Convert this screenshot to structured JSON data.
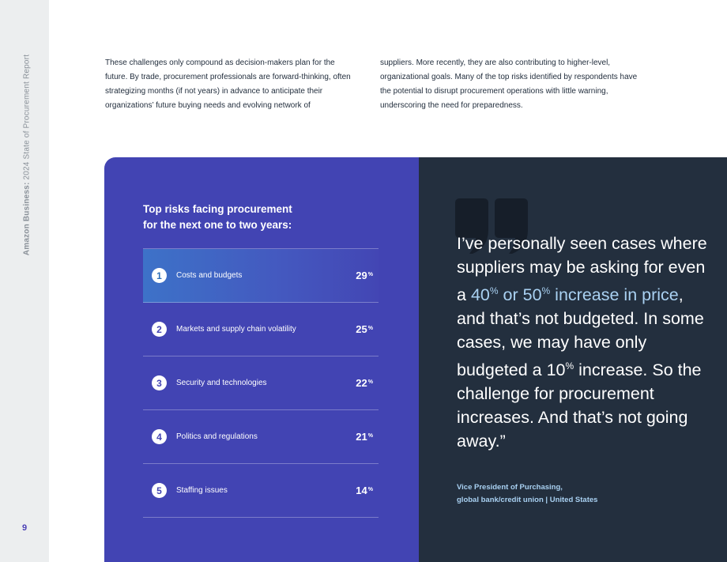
{
  "sidebar": {
    "report_bold": "Amazon Business:",
    "report_rest": " 2024 State of Procurement Report",
    "page_number": "9"
  },
  "intro": {
    "col1": "These challenges only compound as decision-makers plan for the future. By trade, procurement professionals are forward-thinking, often strategizing months (if not years) in advance to anticipate their organizations’ future buying needs and evolving network of",
    "col2": "suppliers. More recently, they are also contributing to higher-level, organizational goals. Many of the top risks identified by respondents have the potential to disrupt procurement operations with little warning, underscoring the need for preparedness."
  },
  "risks": {
    "title_line1": "Top risks facing procurement",
    "title_line2": "for the next one to two years:",
    "percent_symbol": "%",
    "items": [
      {
        "num": "1",
        "label": "Costs and budgets",
        "value": "29"
      },
      {
        "num": "2",
        "label": "Markets and supply chain volatility",
        "value": "25"
      },
      {
        "num": "3",
        "label": "Security and technologies",
        "value": "22"
      },
      {
        "num": "4",
        "label": "Politics and regulations",
        "value": "21"
      },
      {
        "num": "5",
        "label": "Staffing issues",
        "value": "14"
      }
    ]
  },
  "quote": {
    "part1": "I’ve personally seen cases where suppliers may be asking for even a ",
    "hl1": "40",
    "hl2": "or 50",
    "hl3": " increase in price",
    "part2": ", and that’s not budgeted. In some cases, we may have only budgeted a 10",
    "part3": " increase. So the challenge for procurement increases. And that’s not going away.”",
    "attribution_line1": "Vice President of Purchasing,",
    "attribution_line2": "global bank/credit union | United States"
  },
  "colors": {
    "panel_purple": "#4244b3",
    "panel_navy": "#232f3e",
    "highlight_blue": "#a9d1f2",
    "sidebar_gray": "#eceeef"
  }
}
